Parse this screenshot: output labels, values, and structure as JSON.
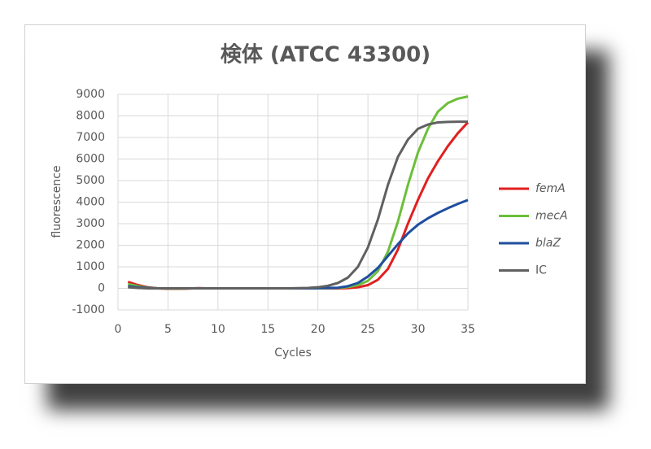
{
  "chart_data": {
    "type": "line",
    "title": "検体 (ATCC 43300)",
    "x_label": "Cycles",
    "y_label": "fluorescence",
    "x": [
      1,
      2,
      3,
      4,
      5,
      6,
      7,
      8,
      9,
      10,
      11,
      12,
      13,
      14,
      15,
      16,
      17,
      18,
      19,
      20,
      21,
      22,
      23,
      24,
      25,
      26,
      27,
      28,
      29,
      30,
      31,
      32,
      33,
      34,
      35
    ],
    "series": [
      {
        "name": "femA",
        "color": "#e0201f",
        "italic": true,
        "values": [
          300,
          150,
          50,
          0,
          -20,
          -20,
          -10,
          10,
          0,
          0,
          0,
          0,
          0,
          0,
          0,
          0,
          0,
          0,
          0,
          0,
          0,
          0,
          10,
          50,
          150,
          400,
          900,
          1800,
          3000,
          4100,
          5100,
          5900,
          6600,
          7200,
          7700
        ]
      },
      {
        "name": "mecA",
        "color": "#6cbf3a",
        "italic": true,
        "values": [
          200,
          100,
          30,
          0,
          -10,
          -10,
          0,
          0,
          0,
          0,
          0,
          0,
          0,
          0,
          0,
          0,
          0,
          0,
          0,
          0,
          10,
          20,
          60,
          150,
          350,
          800,
          1700,
          3100,
          4800,
          6300,
          7400,
          8200,
          8600,
          8800,
          8900
        ]
      },
      {
        "name": "blaZ",
        "color": "#1f4e9e",
        "italic": true,
        "values": [
          100,
          50,
          20,
          0,
          0,
          0,
          0,
          0,
          0,
          0,
          0,
          0,
          0,
          0,
          0,
          0,
          0,
          0,
          0,
          10,
          20,
          30,
          100,
          250,
          550,
          950,
          1500,
          2050,
          2550,
          2950,
          3250,
          3500,
          3720,
          3920,
          4100
        ]
      },
      {
        "name": "IC",
        "color": "#606060",
        "italic": false,
        "values": [
          50,
          20,
          0,
          0,
          0,
          0,
          0,
          0,
          0,
          0,
          0,
          0,
          0,
          0,
          0,
          0,
          0,
          10,
          20,
          50,
          120,
          250,
          500,
          1000,
          1900,
          3200,
          4800,
          6100,
          6900,
          7400,
          7600,
          7700,
          7720,
          7730,
          7730
        ]
      }
    ],
    "xlim": [
      0,
      35
    ],
    "xticks": [
      0,
      5,
      10,
      15,
      20,
      25,
      30,
      35
    ],
    "ylim": [
      -1000,
      9000
    ],
    "yticks": [
      -1000,
      0,
      1000,
      2000,
      3000,
      4000,
      5000,
      6000,
      7000,
      8000,
      9000
    ],
    "grid": true,
    "legend": "right"
  }
}
